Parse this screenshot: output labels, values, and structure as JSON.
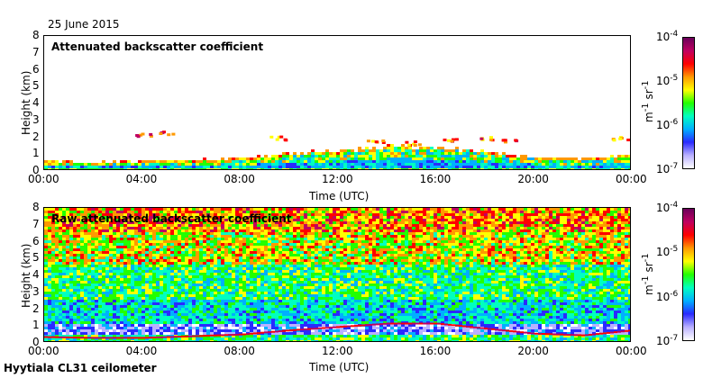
{
  "date_label": "25 June 2015",
  "footer_label": "Hyytiala CL31 ceilometer",
  "colors": {
    "scale": [
      "#ffffff",
      "#b9b0ff",
      "#2a2aff",
      "#00b0ff",
      "#00ffc0",
      "#22ff00",
      "#ffff00",
      "#ff9900",
      "#ff0000",
      "#c00060",
      "#6a005a"
    ]
  },
  "chart_data": [
    {
      "type": "heatmap",
      "title": "Attenuated backscatter coefficient",
      "xlabel": "Time (UTC)",
      "ylabel": "Height (km)",
      "x_ticks": [
        "00:00",
        "04:00",
        "08:00",
        "12:00",
        "16:00",
        "20:00",
        "00:00"
      ],
      "y_ticks": [
        "0",
        "1",
        "2",
        "3",
        "4",
        "5",
        "6",
        "7",
        "8"
      ],
      "ylim": [
        0,
        8
      ],
      "xlim_hours": [
        0,
        24
      ],
      "colorbar": {
        "scale": "log",
        "ticks": [
          "10^-7",
          "10^-6",
          "10^-5",
          "10^-4"
        ],
        "unit": "m^-1 sr^-1"
      },
      "layers": [
        {
          "name": "boundary layer",
          "points_km": [
            [
              0,
              0.4
            ],
            [
              2,
              0.35
            ],
            [
              4,
              0.35
            ],
            [
              6,
              0.45
            ],
            [
              8,
              0.55
            ],
            [
              10,
              0.8
            ],
            [
              12,
              1.0
            ],
            [
              14,
              1.2
            ],
            [
              16,
              1.2
            ],
            [
              18,
              0.9
            ],
            [
              20,
              0.6
            ],
            [
              22,
              0.5
            ],
            [
              24,
              0.8
            ]
          ]
        },
        {
          "name": "cloud",
          "points_km": [
            [
              4.0,
              2.2
            ],
            [
              5.0,
              2.3
            ],
            [
              9.5,
              2.0
            ],
            [
              13.5,
              1.8
            ],
            [
              15.0,
              1.7
            ],
            [
              16.5,
              1.9
            ],
            [
              18.0,
              2.0
            ],
            [
              19.0,
              1.8
            ],
            [
              23.5,
              2.0
            ]
          ]
        }
      ]
    },
    {
      "type": "heatmap",
      "title": "Raw attenuated backscatter coefficient",
      "xlabel": "Time (UTC)",
      "ylabel": "Height (km)",
      "x_ticks": [
        "00:00",
        "04:00",
        "08:00",
        "12:00",
        "16:00",
        "20:00",
        "00:00"
      ],
      "y_ticks": [
        "0",
        "1",
        "2",
        "3",
        "4",
        "5",
        "6",
        "7",
        "8"
      ],
      "ylim": [
        0,
        8
      ],
      "xlim_hours": [
        0,
        24
      ],
      "colorbar": {
        "scale": "log",
        "ticks": [
          "10^-7",
          "10^-6",
          "10^-5",
          "10^-4"
        ],
        "unit": "m^-1 sr^-1"
      }
    }
  ]
}
